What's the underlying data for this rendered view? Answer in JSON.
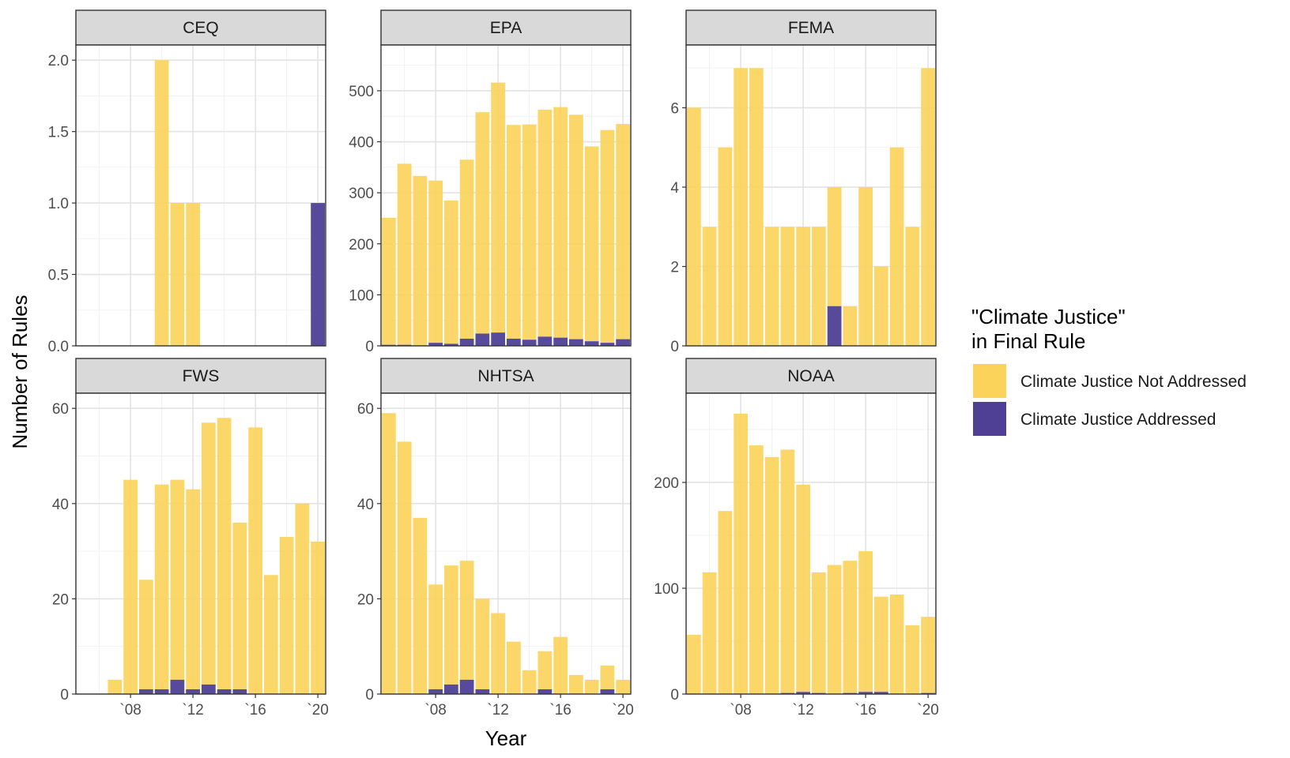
{
  "chart_data": {
    "type": "bar",
    "stacked": true,
    "xlabel": "Year",
    "ylabel": "Number of Rules",
    "grid": true,
    "x_tick_labels": [
      "`08",
      "`12",
      "`16",
      "`20"
    ],
    "x_tick_values": [
      2008,
      2012,
      2016,
      2020
    ],
    "legend": {
      "title_lines": [
        "\"Climate Justice\"",
        "in Final Rule"
      ],
      "position": "right",
      "items": [
        {
          "key": "not_addressed",
          "label": "Climate Justice Not Addressed",
          "color": "#fbd35a"
        },
        {
          "key": "addressed",
          "label": "Climate Justice Addressed",
          "color": "#4f4096"
        }
      ]
    },
    "panels": [
      {
        "title": "CEQ",
        "ylim": [
          0,
          2.0
        ],
        "yticks": [
          0.0,
          0.5,
          1.0,
          1.5,
          2.0
        ],
        "yticklabels": [
          "0.0",
          "0.5",
          "1.0",
          "1.5",
          "2.0"
        ],
        "xlim": [
          2004.5,
          2020.5
        ],
        "years": [
          2010,
          2011,
          2012,
          2020
        ],
        "total": [
          2,
          1,
          1,
          1
        ],
        "addressed": [
          0,
          0,
          0,
          1
        ]
      },
      {
        "title": "EPA",
        "ylim": [
          0,
          560
        ],
        "yticks": [
          0,
          100,
          200,
          300,
          400,
          500
        ],
        "yticklabels": [
          "0",
          "100",
          "200",
          "300",
          "400",
          "500"
        ],
        "xlim": [
          2004.5,
          2020.5
        ],
        "years": [
          2005,
          2006,
          2007,
          2008,
          2009,
          2010,
          2011,
          2012,
          2013,
          2014,
          2015,
          2016,
          2017,
          2018,
          2019,
          2020
        ],
        "total": [
          251,
          357,
          333,
          324,
          285,
          365,
          458,
          516,
          433,
          434,
          463,
          468,
          453,
          391,
          423,
          435
        ],
        "addressed": [
          2,
          2,
          1,
          6,
          4,
          14,
          24,
          26,
          14,
          12,
          18,
          16,
          13,
          9,
          6,
          13
        ]
      },
      {
        "title": "FEMA",
        "ylim": [
          0,
          7.2
        ],
        "yticks": [
          0,
          2,
          4,
          6
        ],
        "yticklabels": [
          "0",
          "2",
          "4",
          "6"
        ],
        "xlim": [
          2004.5,
          2020.5
        ],
        "years": [
          2005,
          2006,
          2007,
          2008,
          2009,
          2010,
          2011,
          2012,
          2013,
          2014,
          2015,
          2016,
          2017,
          2018,
          2019,
          2020
        ],
        "total": [
          6,
          3,
          5,
          7,
          7,
          3,
          3,
          3,
          3,
          4,
          1,
          4,
          2,
          5,
          3,
          7
        ],
        "addressed": [
          0,
          0,
          0,
          0,
          0,
          0,
          0,
          0,
          0,
          1,
          0,
          0,
          0,
          0,
          0,
          0
        ]
      },
      {
        "title": "FWS",
        "ylim": [
          0,
          60
        ],
        "yticks": [
          0,
          20,
          40,
          60
        ],
        "yticklabels": [
          "0",
          "20",
          "40",
          "60"
        ],
        "xlim": [
          2004.5,
          2020.5
        ],
        "years": [
          2007,
          2008,
          2009,
          2010,
          2011,
          2012,
          2013,
          2014,
          2015,
          2016,
          2017,
          2018,
          2019,
          2020
        ],
        "total": [
          3,
          45,
          24,
          44,
          45,
          43,
          57,
          58,
          36,
          56,
          25,
          33,
          40,
          32
        ],
        "addressed": [
          0,
          0,
          1,
          1,
          3,
          1,
          2,
          1,
          1,
          0,
          0,
          0,
          0,
          0
        ]
      },
      {
        "title": "NHTSA",
        "ylim": [
          0,
          60
        ],
        "yticks": [
          0,
          20,
          40,
          60
        ],
        "yticklabels": [
          "0",
          "20",
          "40",
          "60"
        ],
        "xlim": [
          2004.5,
          2020.5
        ],
        "years": [
          2005,
          2006,
          2007,
          2008,
          2009,
          2010,
          2011,
          2012,
          2013,
          2014,
          2015,
          2016,
          2017,
          2018,
          2019,
          2020
        ],
        "total": [
          59,
          53,
          37,
          23,
          27,
          28,
          20,
          17,
          11,
          5,
          9,
          12,
          4,
          3,
          6,
          3
        ],
        "addressed": [
          0,
          0,
          0,
          1,
          2,
          3,
          1,
          0,
          0,
          0,
          1,
          0,
          0,
          0,
          1,
          0
        ]
      },
      {
        "title": "NOAA",
        "ylim": [
          0,
          270
        ],
        "yticks": [
          0,
          100,
          200
        ],
        "yticklabels": [
          "0",
          "100",
          "200"
        ],
        "xlim": [
          2004.5,
          2020.5
        ],
        "years": [
          2005,
          2006,
          2007,
          2008,
          2009,
          2010,
          2011,
          2012,
          2013,
          2014,
          2015,
          2016,
          2017,
          2018,
          2019,
          2020
        ],
        "total": [
          56,
          115,
          173,
          265,
          235,
          224,
          231,
          198,
          115,
          122,
          126,
          135,
          92,
          94,
          65,
          73
        ],
        "addressed": [
          0,
          0,
          0,
          0,
          0,
          0,
          1,
          2,
          1,
          0,
          1,
          2,
          2,
          0,
          0,
          1
        ]
      }
    ]
  }
}
